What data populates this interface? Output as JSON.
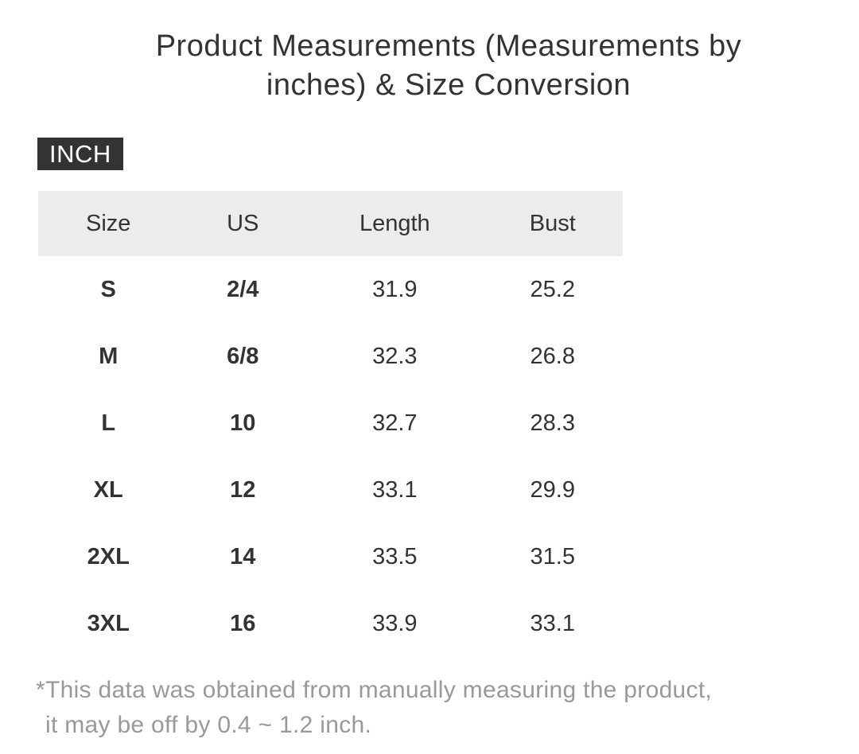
{
  "header": {
    "title": "Product Measurements (Measurements by inches) & Size Conversion",
    "unit_badge": "INCH"
  },
  "size_table": {
    "columns": [
      "Size",
      "US",
      "Length",
      "Bust"
    ],
    "rows": [
      {
        "size": "S",
        "us": "2/4",
        "length": "31.9",
        "bust": "25.2"
      },
      {
        "size": "M",
        "us": "6/8",
        "length": "32.3",
        "bust": "26.8"
      },
      {
        "size": "L",
        "us": "10",
        "length": "32.7",
        "bust": "28.3"
      },
      {
        "size": "XL",
        "us": "12",
        "length": "33.1",
        "bust": "29.9"
      },
      {
        "size": "2XL",
        "us": "14",
        "length": "33.5",
        "bust": "31.5"
      },
      {
        "size": "3XL",
        "us": "16",
        "length": "33.9",
        "bust": "33.1"
      }
    ]
  },
  "footnote": {
    "line1": "*This data was obtained from manually measuring the product,",
    "line2": "it may be off by 0.4 ~ 1.2 inch."
  },
  "colors": {
    "text": "#333333",
    "header_row_bg": "#ececec",
    "badge_bg": "#333333",
    "badge_text": "#ffffff",
    "footnote_text": "#999999"
  },
  "chart_data": {
    "type": "table",
    "title": "Product Measurements (Measurements by inches) & Size Conversion",
    "unit": "inches",
    "unit_badge": "INCH",
    "columns": [
      "Size",
      "US",
      "Length",
      "Bust"
    ],
    "rows": [
      [
        "S",
        "2/4",
        31.9,
        25.2
      ],
      [
        "M",
        "6/8",
        32.3,
        26.8
      ],
      [
        "L",
        "10",
        32.7,
        28.3
      ],
      [
        "XL",
        "12",
        33.1,
        29.9
      ],
      [
        "2XL",
        "14",
        33.5,
        31.5
      ],
      [
        "3XL",
        "16",
        33.9,
        33.1
      ]
    ],
    "footnote": "*This data was obtained from manually measuring the product, it may be off by 0.4 ~ 1.2 inch."
  }
}
